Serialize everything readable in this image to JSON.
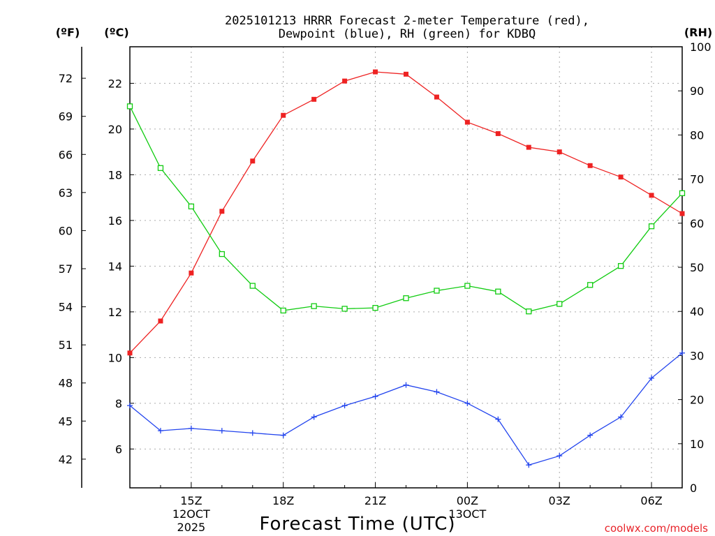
{
  "chart_data": {
    "type": "line",
    "title_line1": "2025101213 HRRR Forecast 2-meter Temperature (red),",
    "title_line2": "Dewpoint (blue), RH (green) for KDBQ",
    "xlabel": "Forecast Time (UTC)",
    "axis_units": {
      "fahrenheit": "(ºF)",
      "celsius": "(ºC)",
      "rh": "(RH)"
    },
    "watermark": "coolwx.com/models",
    "x_hours": [
      13,
      14,
      15,
      16,
      17,
      18,
      19,
      20,
      21,
      22,
      23,
      24,
      25,
      26,
      27,
      28,
      29,
      30,
      31
    ],
    "xlim": [
      13,
      31
    ],
    "x_ticks": [
      {
        "hour": 15,
        "label": "15Z",
        "sub1": "12OCT",
        "sub2": "2025"
      },
      {
        "hour": 18,
        "label": "18Z"
      },
      {
        "hour": 21,
        "label": "21Z"
      },
      {
        "hour": 24,
        "label": "00Z",
        "sub1": "13OCT"
      },
      {
        "hour": 27,
        "label": "03Z"
      },
      {
        "hour": 30,
        "label": "06Z"
      }
    ],
    "celsius_axis": {
      "range": [
        4.3,
        23.6
      ],
      "ticks": [
        6,
        8,
        10,
        12,
        14,
        16,
        18,
        20,
        22
      ]
    },
    "fahrenheit_ticks": [
      42,
      45,
      48,
      51,
      54,
      57,
      60,
      63,
      66,
      69,
      72
    ],
    "rh_axis": {
      "range": [
        0,
        100
      ],
      "ticks": [
        0,
        10,
        20,
        30,
        40,
        50,
        60,
        70,
        80,
        90,
        100
      ]
    },
    "series": [
      {
        "name": "Temperature",
        "unit": "C",
        "color": "#ee2222",
        "marker": "filled-square",
        "values": [
          10.2,
          11.6,
          13.7,
          16.4,
          18.6,
          20.6,
          21.3,
          22.1,
          22.5,
          22.4,
          21.4,
          20.3,
          19.8,
          19.2,
          19.0,
          18.4,
          17.9,
          17.1,
          16.3
        ]
      },
      {
        "name": "Dewpoint",
        "unit": "C",
        "color": "#2244ee",
        "marker": "plus",
        "values": [
          7.9,
          6.8,
          6.9,
          6.8,
          6.7,
          6.6,
          7.4,
          7.9,
          8.3,
          8.8,
          8.5,
          8.0,
          7.3,
          5.3,
          5.7,
          6.6,
          7.4,
          9.1,
          10.2
        ]
      },
      {
        "name": "RH",
        "unit": "%",
        "color": "#11cc11",
        "marker": "open-square",
        "values": [
          86.5,
          72.5,
          63.8,
          53.0,
          45.8,
          40.2,
          41.2,
          40.6,
          40.8,
          43.0,
          44.7,
          45.8,
          44.5,
          40.0,
          41.7,
          46.0,
          50.3,
          59.3,
          66.8
        ]
      }
    ]
  }
}
